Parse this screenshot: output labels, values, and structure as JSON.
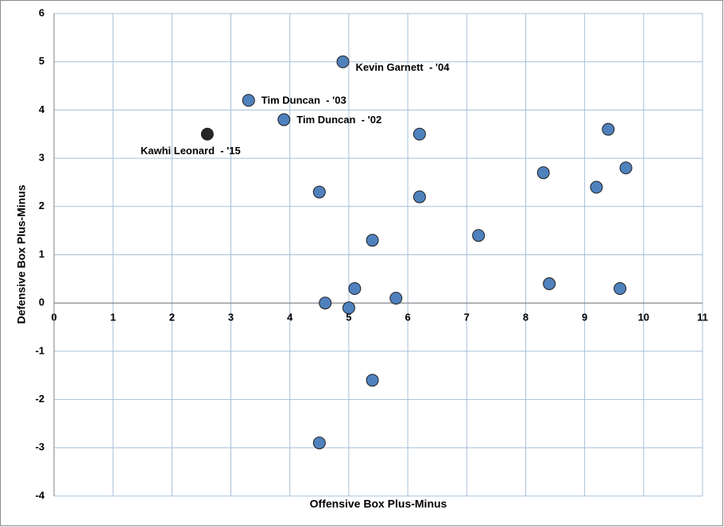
{
  "chart_data": {
    "type": "scatter",
    "xlabel": "Offensive Box Plus-Minus",
    "ylabel": "Defensive Box Plus-Minus",
    "xlim": [
      0,
      11
    ],
    "xticks": [
      0,
      1,
      2,
      3,
      4,
      5,
      6,
      7,
      8,
      9,
      10,
      11
    ],
    "ylim": [
      -4,
      6
    ],
    "yticks": [
      -4,
      -3,
      -2,
      -1,
      0,
      1,
      2,
      3,
      4,
      5,
      6
    ],
    "grid": true,
    "series": [
      {
        "color": "#4f81bd",
        "x": [
          4.9,
          3.3,
          3.9,
          6.2,
          9.4,
          8.3,
          9.7,
          9.2,
          4.5,
          6.2,
          7.2,
          5.4,
          8.4,
          9.6,
          5.1,
          5.8,
          4.6,
          5.0,
          5.4,
          4.5
        ],
        "y": [
          5.0,
          4.2,
          3.8,
          3.5,
          3.6,
          2.7,
          2.8,
          2.4,
          2.3,
          2.2,
          1.4,
          1.3,
          0.4,
          0.3,
          0.3,
          0.1,
          0,
          -0.1,
          -1.6,
          -2.9
        ],
        "labels": [
          "Kevin Garnett  - '04",
          "Tim Duncan  - '03",
          "Tim Duncan  - '02",
          null,
          null,
          null,
          null,
          null,
          null,
          null,
          null,
          null,
          null,
          null,
          null,
          null,
          null,
          null,
          null,
          null
        ]
      },
      {
        "color": "#262626",
        "x": [
          2.6
        ],
        "y": [
          3.5
        ],
        "labels": [
          "Kawhi Leonard  - '15"
        ]
      }
    ]
  }
}
